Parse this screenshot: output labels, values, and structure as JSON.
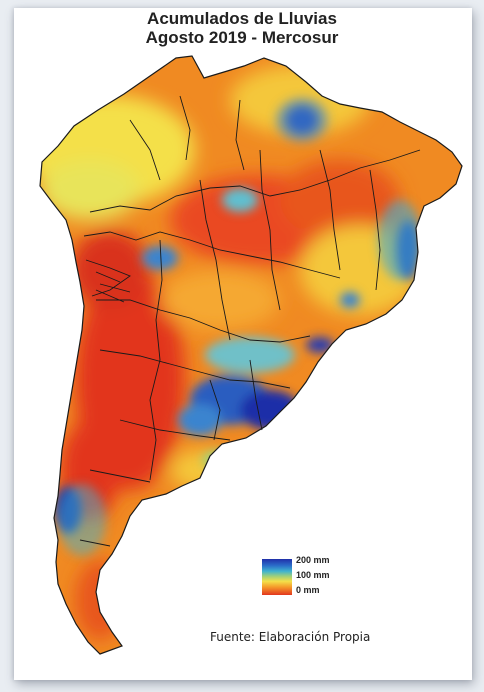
{
  "title_line1": "Acumulados de Lluvias",
  "title_line2": "Agosto 2019 - Mercosur",
  "legend": {
    "items": [
      "200 mm",
      "100 mm",
      "0 mm"
    ],
    "colors": {
      "high": "#1f2fa8",
      "mid": "#f4e04a",
      "low": "#e2361e"
    }
  },
  "source": "Fuente: Elaboración Propia"
}
